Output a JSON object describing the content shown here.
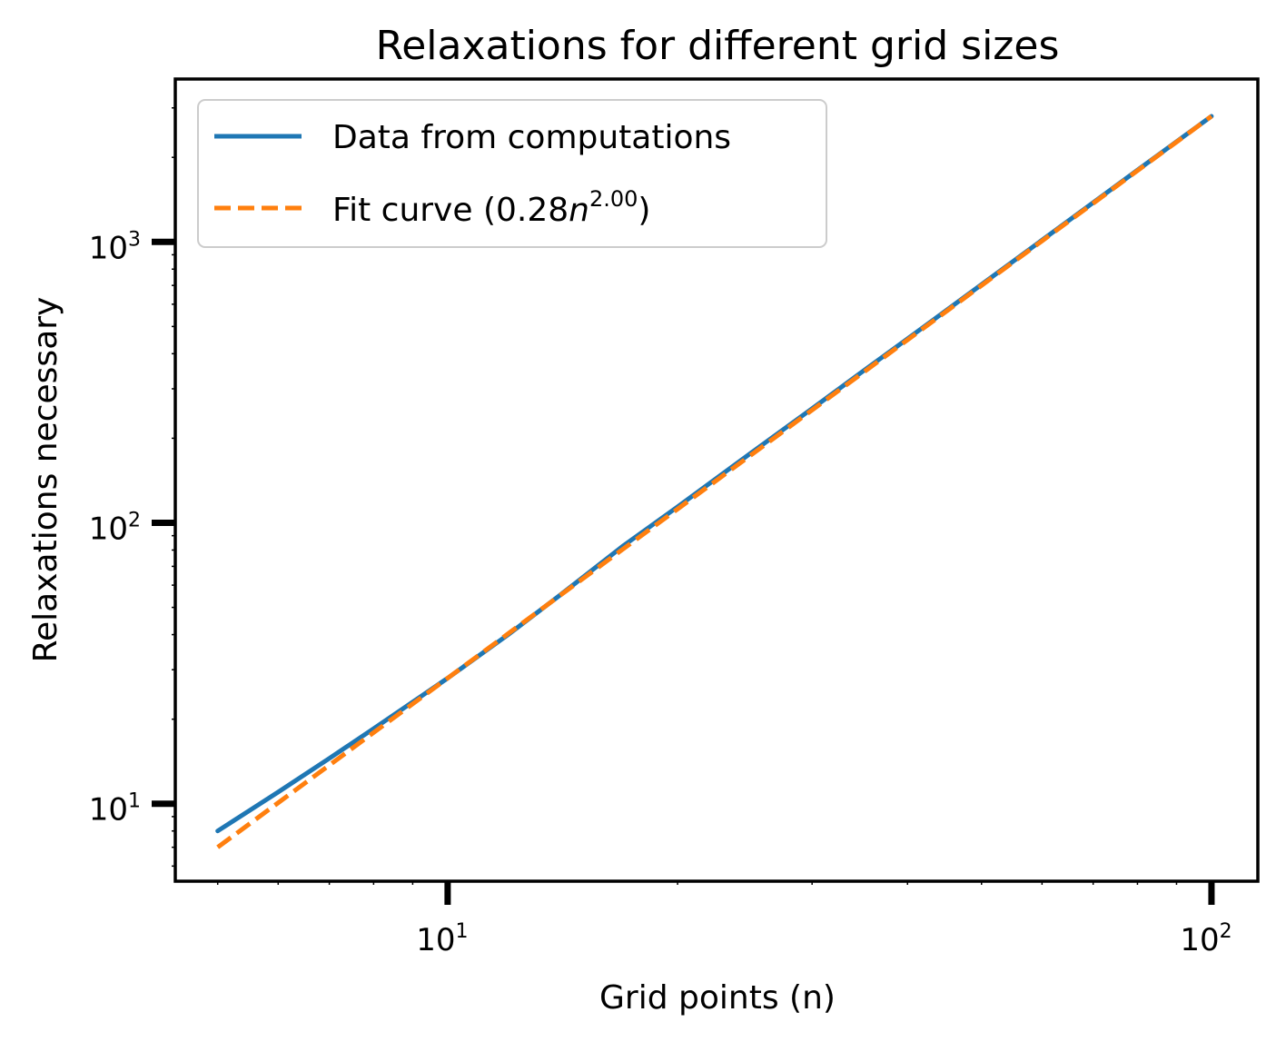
{
  "chart_data": {
    "type": "line",
    "title": "Relaxations for different grid sizes",
    "xlabel": "Grid points (n)",
    "ylabel": "Relaxations necessary",
    "xscale": "log",
    "yscale": "log",
    "xlim": [
      4.4,
      115
    ],
    "ylim": [
      5.3,
      3800
    ],
    "grid": false,
    "legend": "top-left",
    "xticks": [
      {
        "value": 10,
        "base": "10",
        "exp": "1"
      },
      {
        "value": 100,
        "base": "10",
        "exp": "2"
      }
    ],
    "yticks": [
      {
        "value": 10,
        "base": "10",
        "exp": "1"
      },
      {
        "value": 100,
        "base": "10",
        "exp": "2"
      },
      {
        "value": 1000,
        "base": "10",
        "exp": "3"
      }
    ],
    "x": [
      5,
      6,
      7,
      8,
      10,
      12,
      14,
      17,
      20,
      25,
      30,
      35,
      40,
      50,
      60,
      70,
      80,
      90,
      100
    ],
    "series": [
      {
        "name": "Data from computations",
        "color": "#1f77b4",
        "style": "solid",
        "values": [
          8,
          11,
          14.5,
          18.5,
          28,
          40,
          55,
          83,
          114,
          178,
          255,
          347,
          452,
          705,
          1015,
          1380,
          1800,
          2275,
          2800
        ]
      },
      {
        "name": "Fit curve (0.28n^2.00)",
        "color": "#ff7f0e",
        "style": "dashed",
        "legend_label_main": "Fit curve (0.28",
        "legend_label_var": "n",
        "legend_label_sup": "2.00",
        "legend_label_end": ")",
        "values": [
          7,
          10.08,
          13.72,
          17.92,
          28,
          40.32,
          54.88,
          80.92,
          112,
          175,
          252,
          343,
          448,
          700,
          1008,
          1372,
          1792,
          2268,
          2800
        ]
      }
    ]
  }
}
